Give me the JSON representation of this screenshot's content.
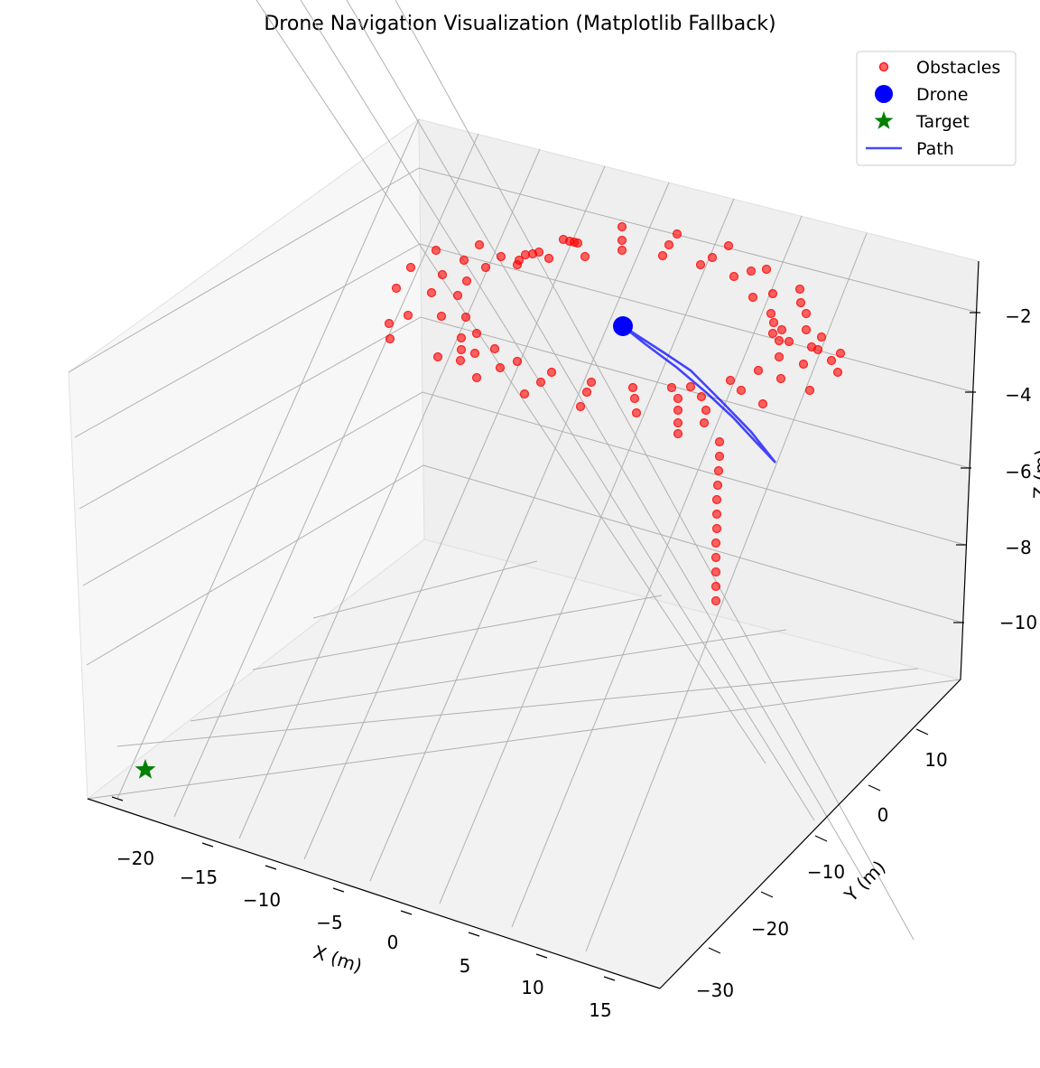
{
  "chart_data": {
    "type": "scatter3d",
    "title": "Drone Navigation Visualization (Matplotlib Fallback)",
    "xlabel": "X (m)",
    "ylabel": "Y (m)",
    "zlabel": "Z (m)",
    "xticks": [
      -20,
      -15,
      -10,
      -5,
      0,
      5,
      10,
      15
    ],
    "yticks": [
      10,
      0,
      -10,
      -20,
      -30
    ],
    "zticks": [
      -2,
      -4,
      -6,
      -8,
      -10
    ],
    "legend_placement": "top-right",
    "grid": true,
    "legend": [
      {
        "label": "Obstacles",
        "marker": "circle",
        "color": "#ff0000"
      },
      {
        "label": "Drone",
        "marker": "circle",
        "color": "#0000ff"
      },
      {
        "label": "Target",
        "marker": "star",
        "color": "#008000"
      },
      {
        "label": "Path",
        "marker": "line",
        "color": "#0000ff"
      }
    ],
    "obstacle_color": "#ff0000",
    "drone_color": "#0000ff",
    "target_color": "#008000",
    "path_color": "#0000ff"
  }
}
